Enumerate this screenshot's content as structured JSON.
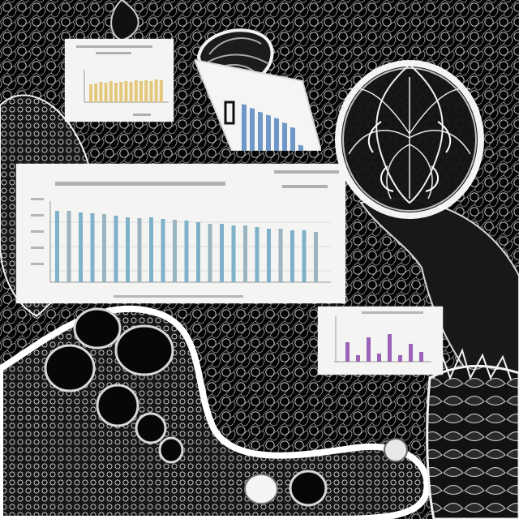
{
  "scene": {
    "background_color": "#050505",
    "line_color": "#e8e8e8",
    "objects": [
      "microscopic-organic-texture",
      "brain-illustration",
      "shell-illustration",
      "porous-bone-structure",
      "spiky-pod-structure"
    ]
  },
  "panels": {
    "main": {
      "bar_color": "#7fb2c9",
      "alt_bar_color": "#9ab4c2"
    },
    "small": {
      "bar_color": "#e3c77b"
    },
    "tilted": {
      "bar_color": "#6f98c8"
    },
    "purple": {
      "bar_color": "#9a63b7"
    }
  }
}
